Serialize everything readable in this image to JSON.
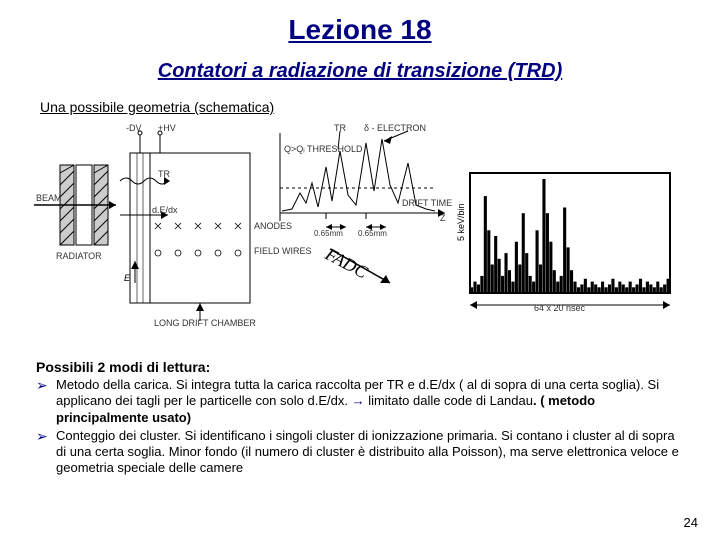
{
  "title": "Lezione 18",
  "subtitle": "Contatori a radiazione di transizione (TRD)",
  "section_label": "Una possibile geometria (schematica)",
  "diagram": {
    "labels": {
      "dv": "-DV",
      "hv": "+HV",
      "beam": "BEAM",
      "radiator": "RADIATOR",
      "tr": "TR",
      "dedx": "d.E/dx",
      "anodes": "ANODES",
      "field_wires": "FIELD WIRES",
      "long_drift": "LONG DRIFT CHAMBER",
      "threshold": "Q>Qᵢ THRESHOLD",
      "tr_peak": "TR",
      "delta_e": "δ - ELECTRON",
      "drift_time": "DRIFT TIME",
      "z_axis": "Z",
      "gap1": "0.65mm",
      "gap2": "0.65mm",
      "fadc": "FADC",
      "y_axis_histo": "5 keV/bin",
      "x_axis_histo": "64 x 20 nsec"
    },
    "colors": {
      "stroke": "#000000",
      "fill_bg": "#ffffff",
      "radiator_fill": "#dddddd"
    },
    "histogram_bars": [
      2,
      4,
      3,
      6,
      34,
      22,
      10,
      20,
      12,
      6,
      14,
      8,
      4,
      18,
      10,
      28,
      14,
      6,
      4,
      22,
      10,
      40,
      28,
      18,
      8,
      4,
      6,
      30,
      16,
      8,
      4,
      2,
      3,
      5,
      2,
      4,
      3,
      2,
      4,
      2,
      3,
      5,
      2,
      4,
      3,
      2,
      4,
      2,
      3,
      5,
      2,
      4,
      3,
      2,
      4,
      2,
      3,
      5
    ]
  },
  "reading": {
    "heading": "Possibili 2 modi di lettura:",
    "items": [
      {
        "prefix": "Metodo della carica.",
        "rest": " Si integra tutta la carica raccolta per TR e d.E/dx ( al di sopra di una certa soglia). Si applicano dei tagli per le particelle con solo d.E/dx. ",
        "arrow": "→",
        "after_arrow": " limitato dalle code di Landau",
        "paren": ". ( metodo principalmente usato)"
      },
      {
        "prefix": "Conteggio dei cluster.",
        "rest": " Si identificano i singoli cluster di ionizzazione primaria. Si contano i cluster al di sopra di una certa soglia. Minor fondo (il numero di cluster è distribuito alla Poisson), ma serve elettronica veloce e geometria speciale delle camere"
      }
    ]
  },
  "page_number": "24"
}
